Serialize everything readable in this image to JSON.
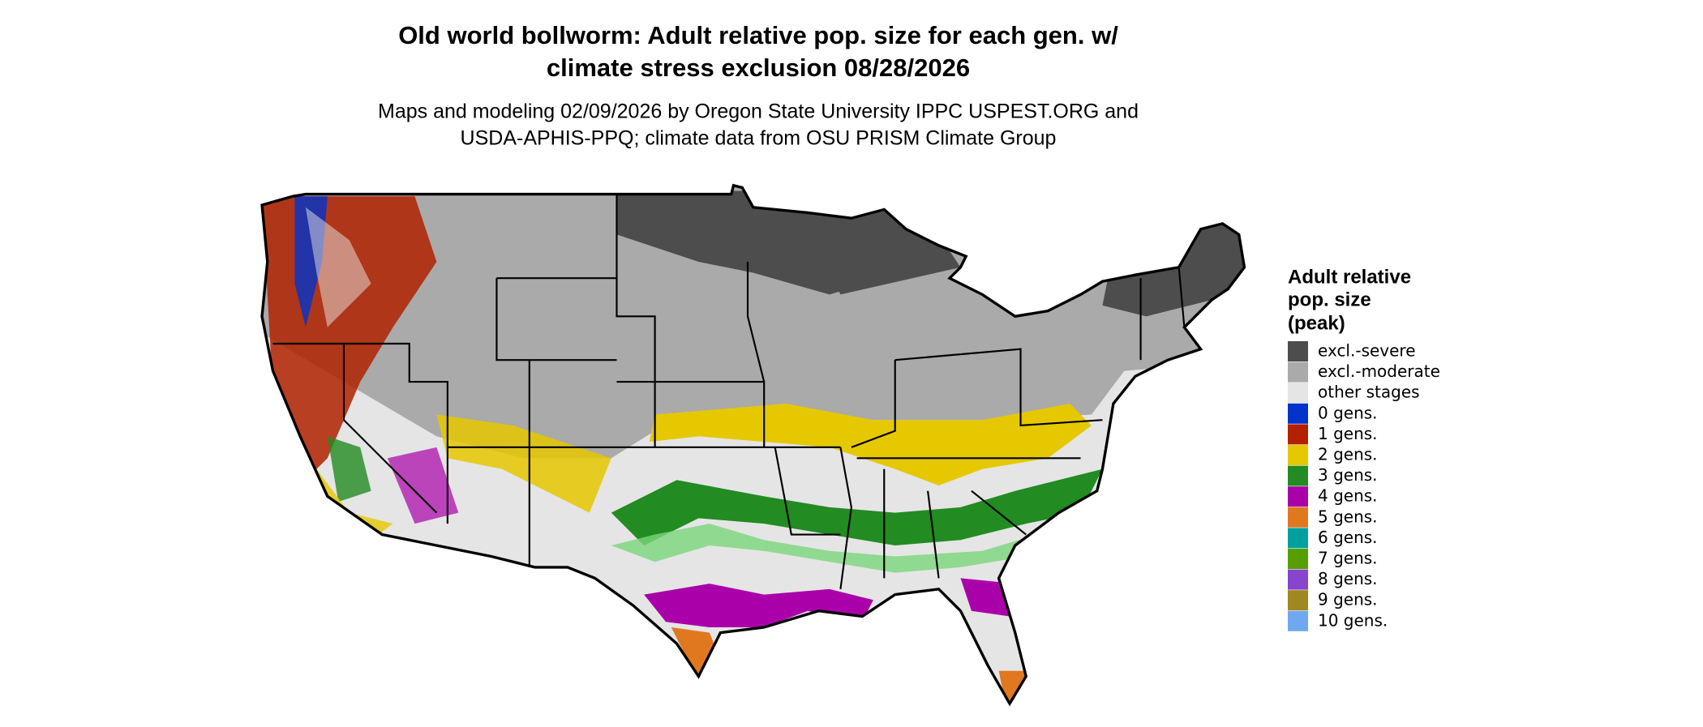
{
  "title_lines": [
    "Old world bollworm: Adult relative pop. size for each gen. w/",
    "climate stress exclusion 08/28/2026"
  ],
  "subtitle_lines": [
    "Maps and modeling 02/09/2026 by Oregon State University IPPC USPEST.ORG and",
    "USDA-APHIS-PPQ; climate data from OSU PRISM Climate Group"
  ],
  "legend": {
    "title_lines": [
      "Adult relative",
      "pop. size",
      "(peak)"
    ],
    "items": [
      {
        "label": "excl.-severe",
        "color": "#4d4d4d"
      },
      {
        "label": "excl.-moderate",
        "color": "#aaaaaa"
      },
      {
        "label": "other stages",
        "color": "#e5e5e5"
      },
      {
        "label": "0 gens.",
        "color": "#0033cc"
      },
      {
        "label": "1 gens.",
        "color": "#b22200"
      },
      {
        "label": "2 gens.",
        "color": "#e6c800"
      },
      {
        "label": "3 gens.",
        "color": "#228b22"
      },
      {
        "label": "4 gens.",
        "color": "#aa00aa"
      },
      {
        "label": "5 gens.",
        "color": "#e07820"
      },
      {
        "label": "6 gens.",
        "color": "#00a0a0"
      },
      {
        "label": "7 gens.",
        "color": "#55a000"
      },
      {
        "label": "8 gens.",
        "color": "#8844cc"
      },
      {
        "label": "9 gens.",
        "color": "#a08820"
      },
      {
        "label": "10 gens.",
        "color": "#70a8f0"
      }
    ]
  }
}
